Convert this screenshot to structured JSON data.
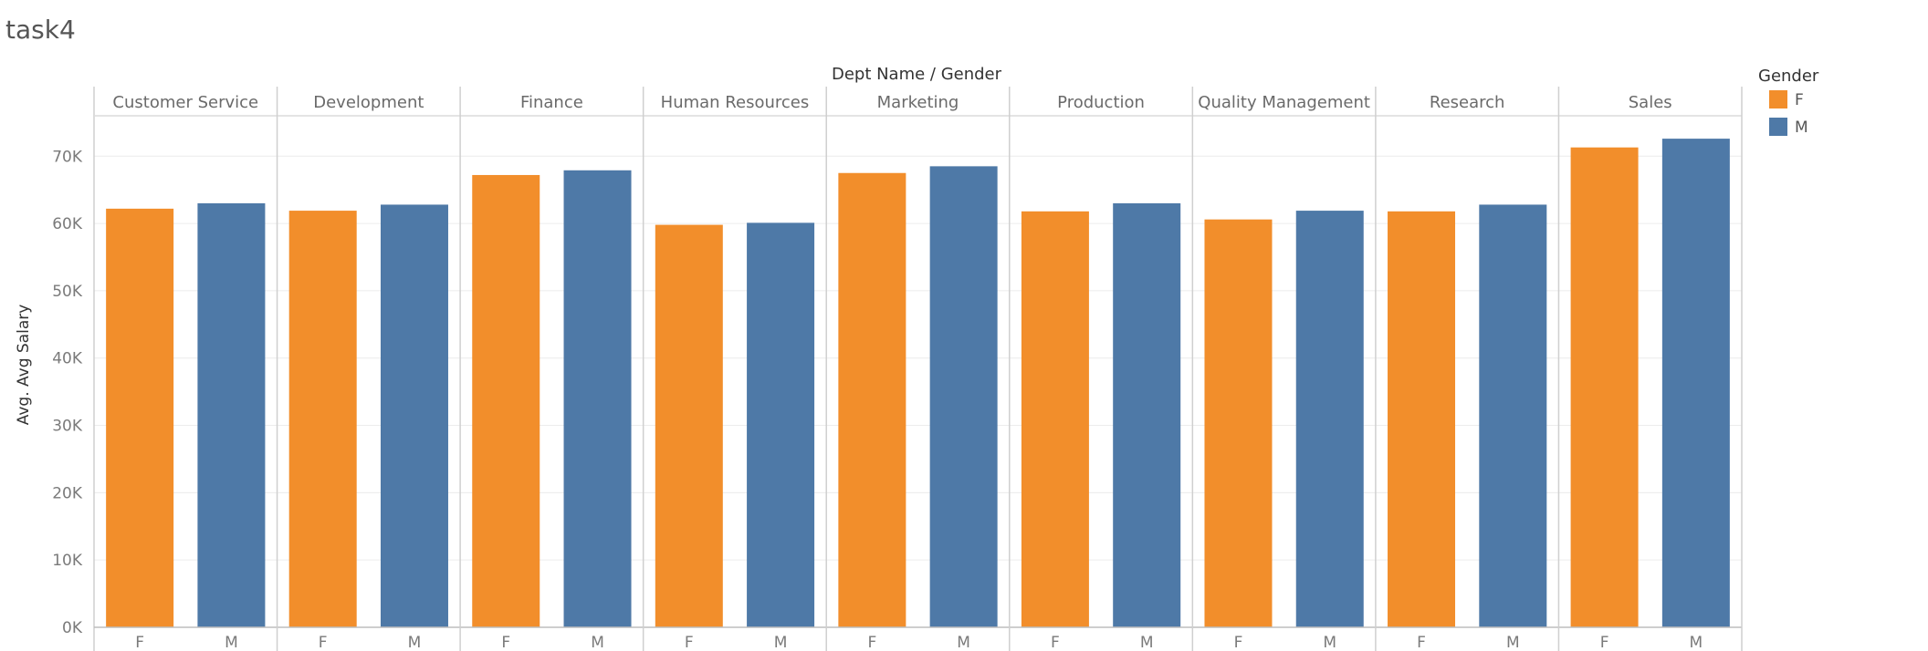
{
  "sheet": {
    "title": "task4"
  },
  "chart_data": {
    "type": "bar",
    "title": "",
    "column_header": "Dept Name / Gender",
    "ylabel": "Avg. Avg Salary",
    "ylim": [
      0,
      76000
    ],
    "y_ticks": [
      0,
      10000,
      20000,
      30000,
      40000,
      50000,
      60000,
      70000
    ],
    "y_tick_labels": [
      "0K",
      "10K",
      "20K",
      "30K",
      "40K",
      "50K",
      "60K",
      "70K"
    ],
    "grid": true,
    "categories": [
      "Customer Service",
      "Development",
      "Finance",
      "Human Resources",
      "Marketing",
      "Production",
      "Quality Management",
      "Research",
      "Sales"
    ],
    "sub_categories": [
      "F",
      "M"
    ],
    "series": [
      {
        "name": "F",
        "color": "#F28E2B",
        "values": [
          62200,
          61900,
          67200,
          59800,
          67500,
          61800,
          60600,
          61800,
          71300
        ]
      },
      {
        "name": "M",
        "color": "#4E79A7",
        "values": [
          63000,
          62800,
          67900,
          60100,
          68500,
          63000,
          61900,
          62800,
          72600
        ]
      }
    ],
    "legend": {
      "title": "Gender",
      "placement": "right",
      "items": [
        "F",
        "M"
      ]
    }
  }
}
